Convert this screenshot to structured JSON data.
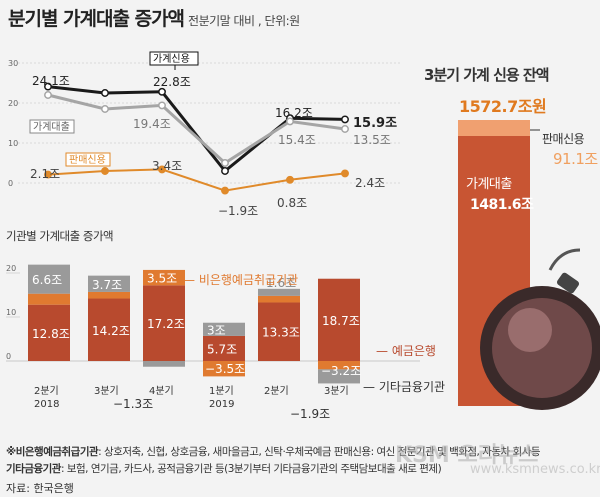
{
  "header": {
    "title": "분기별 가계대출 증가액",
    "subtitle": "전분기말 대비 , 단위:원"
  },
  "balance": {
    "title": "3분기 가계 신용 잔액",
    "total": "1572.7조원",
    "sales_label": "판매신용",
    "sales_value": "91.1조",
    "household_label": "가계대출",
    "household_value": "1481.6조"
  },
  "notes": {
    "line1_bold": "※비은행예금취급기관",
    "line1": ": 상호저축, 신협, 상호금융, 새마을금고, 신탁·우체국예금   판매신용: 여신 전문기관 및 백화점, 자동차 회사등",
    "line2_bold": "기타금융기관",
    "line2": ": 보험, 연기금, 카드사, 공적금융기관 등(3분기부터 기타금융기관의 주택담보대출 새로 편제)"
  },
  "source": "자료: 한국은행",
  "watermark": "KSM 오리뉴스",
  "watermark2": "www.ksmnews.co.kr",
  "colors": {
    "household_credit": "#1a1a1a",
    "household_loans": "#a5a5a5",
    "sales_credit": "#e08a2a",
    "deposit_banks": "#b84a2e",
    "nonbank": "#e07a30",
    "other_fin": "#9a9a9a",
    "bal_household": "#c85533",
    "bal_sales": "#f0a070"
  },
  "icons": {
    "sphere": "money-ball-icon",
    "fuse": "fuse-icon"
  },
  "chart_data": [
    {
      "type": "line",
      "categories": [
        "2분기 2018",
        "3분기 2018",
        "4분기 2018",
        "1분기 2019",
        "2분기 2019",
        "3분기 2019"
      ],
      "ylim": [
        0,
        30
      ],
      "yticks": [
        0,
        10,
        20,
        30
      ],
      "grid": true,
      "series": [
        {
          "name": "가계신용",
          "values": [
            24.1,
            22.5,
            22.8,
            3.0,
            16.2,
            15.9
          ],
          "labels": [
            "24.1조",
            "",
            "22.8조",
            "",
            "16.2조",
            "15.9조"
          ]
        },
        {
          "name": "가계대출",
          "values": [
            22.0,
            18.5,
            19.4,
            5.0,
            15.4,
            13.5
          ],
          "labels": [
            "",
            "",
            "19.4조",
            "",
            "15.4조",
            "13.5조"
          ]
        },
        {
          "name": "판매신용",
          "values": [
            2.1,
            3.0,
            3.4,
            -1.9,
            0.8,
            2.4
          ],
          "labels": [
            "2.1조",
            "",
            "3.4조",
            "−1.9조",
            "0.8조",
            "2.4조"
          ]
        }
      ]
    },
    {
      "type": "bar",
      "title": "기관별 가계대출 증가액",
      "categories": [
        "2분기 2018",
        "3분기 2018",
        "4분기 2018",
        "1분기 2019",
        "2분기 2019",
        "3분기 2019"
      ],
      "category_labels": [
        [
          "2분기",
          "2018"
        ],
        [
          "3분기",
          ""
        ],
        [
          "4분기",
          ""
        ],
        [
          "1분기",
          "2019"
        ],
        [
          "2분기",
          ""
        ],
        [
          "3분기",
          ""
        ]
      ],
      "ylim": [
        -5,
        25
      ],
      "yticks": [
        0,
        10,
        20
      ],
      "series": [
        {
          "name": "예금은행",
          "values": [
            12.8,
            14.2,
            17.2,
            5.7,
            13.3,
            18.7
          ],
          "labels": [
            "12.8조",
            "14.2조",
            "17.2조",
            "5.7조",
            "13.3조",
            "18.7조"
          ]
        },
        {
          "name": "비은행예금취급기관",
          "values": [
            2.5,
            1.5,
            3.5,
            -3.5,
            1.5,
            -1.9
          ],
          "labels": [
            "",
            "",
            "3.5조",
            "−3.5조",
            "",
            "−1.9조"
          ]
        },
        {
          "name": "기타금융기관",
          "values": [
            6.6,
            3.7,
            -1.3,
            3.0,
            1.6,
            -3.2
          ],
          "labels": [
            "6.6조",
            "3.7조",
            "−1.3조",
            "3조",
            "1.6조",
            "−3.2조"
          ]
        }
      ]
    },
    {
      "type": "bar",
      "title": "3분기 가계 신용 잔액",
      "categories": [
        "3분기"
      ],
      "series": [
        {
          "name": "가계대출",
          "values": [
            1481.6
          ]
        },
        {
          "name": "판매신용",
          "values": [
            91.1
          ]
        }
      ]
    }
  ]
}
